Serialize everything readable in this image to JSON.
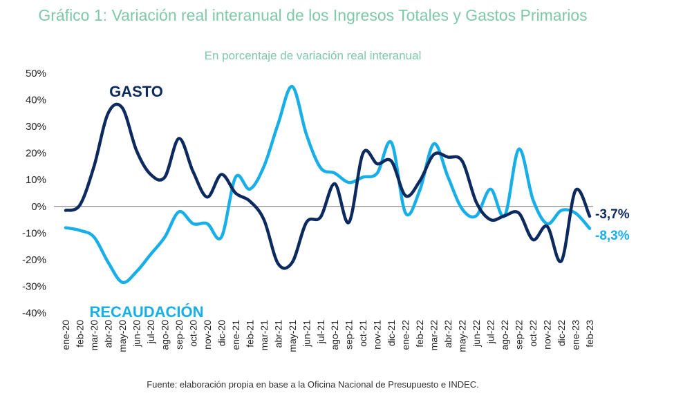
{
  "chart_data": {
    "type": "line",
    "title": "Gráfico 1: Variación real interanual de los Ingresos Totales y Gastos Primarios",
    "subtitle": "En porcentaje de variación real interanual",
    "source": "Fuente: elaboración propia en base a la Oficina Nacional de Presupuesto e INDEC.",
    "ylim": [
      -40,
      50
    ],
    "yticks": [
      "50%",
      "40%",
      "30%",
      "20%",
      "10%",
      "0%",
      "-10%",
      "-20%",
      "-30%",
      "-40%"
    ],
    "ytick_values": [
      50,
      40,
      30,
      20,
      10,
      0,
      -10,
      -20,
      -30,
      -40
    ],
    "grid": false,
    "categories": [
      "ene-20",
      "feb-20",
      "mar-20",
      "abr-20",
      "may-20",
      "jun-20",
      "jul-20",
      "ago-20",
      "sep-20",
      "oct-20",
      "nov-20",
      "dic-20",
      "ene-21",
      "feb-21",
      "mar-21",
      "abr-21",
      "may-21",
      "jun-21",
      "jul-21",
      "ago-21",
      "sep-21",
      "oct-21",
      "nov-21",
      "dic-21",
      "ene-22",
      "feb-22",
      "mar-22",
      "abr-22",
      "may-22",
      "jun-22",
      "jul-22",
      "ago-22",
      "sep-22",
      "oct-22",
      "nov-22",
      "dic-22",
      "ene-23",
      "feb-23"
    ],
    "series": [
      {
        "name": "GASTO",
        "color": "#0d2a5e",
        "end_label": "-3,7%",
        "values": [
          -1.5,
          0.5,
          15,
          35,
          37,
          21,
          12,
          11,
          25.5,
          13,
          3.5,
          12,
          5,
          2,
          -5,
          -21.5,
          -21,
          -6,
          -4,
          8.5,
          -6,
          20,
          16,
          17,
          4,
          9.5,
          19.5,
          18.5,
          17,
          1.5,
          -5,
          -3.5,
          -2.5,
          -12.5,
          -7.5,
          -20.5,
          6,
          -3.7
        ]
      },
      {
        "name": "RECAUDACIÓN",
        "color": "#18aee8",
        "end_label": "-8,3%",
        "values": [
          -8,
          -9,
          -11.5,
          -21,
          -28.5,
          -24.5,
          -18,
          -11.5,
          -2,
          -6.5,
          -6.5,
          -11.5,
          11,
          6.5,
          15,
          31,
          45,
          27,
          14.5,
          12.5,
          9,
          11,
          12.5,
          24,
          -2.5,
          6,
          23.5,
          11,
          -1,
          -3.5,
          6.5,
          -3.5,
          21.5,
          2.5,
          -6.5,
          -1.5,
          -2.5,
          -8.3
        ]
      }
    ]
  }
}
